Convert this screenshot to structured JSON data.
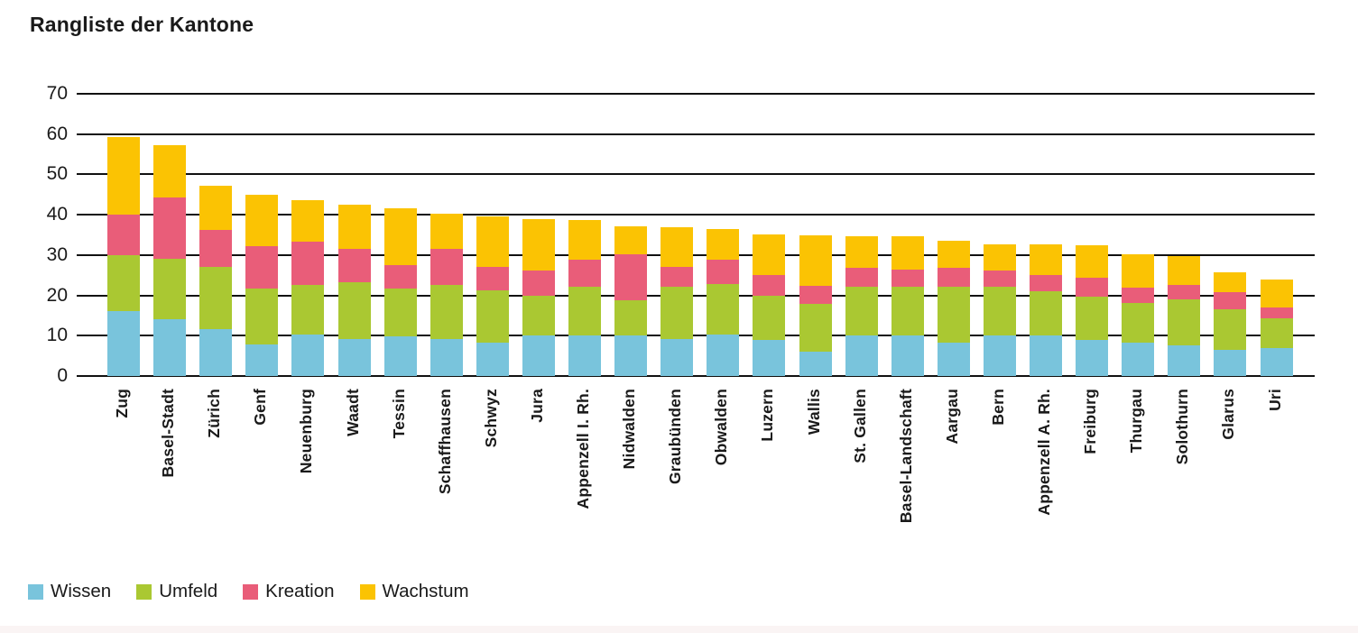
{
  "page": {
    "background": "#ffffff",
    "footer_strip_color": "#faf4f4",
    "grid_color": "#111111",
    "text_color": "#1a1a1a"
  },
  "chart_data": {
    "type": "bar",
    "stacked": true,
    "title": "Rangliste der Kantone",
    "xlabel": "",
    "ylabel": "",
    "y_axis": {
      "min": 0,
      "max": 70,
      "step": 10,
      "ticks": [
        70,
        60,
        50,
        40,
        30,
        20,
        10,
        0
      ]
    },
    "grid": "horizontal",
    "legend_position": "bottom-left",
    "categories": [
      "Zug",
      "Basel-Stadt",
      "Zürich",
      "Genf",
      "Neuenburg",
      "Waadt",
      "Tessin",
      "Schaffhausen",
      "Schwyz",
      "Jura",
      "Appenzell I. Rh.",
      "Nidwalden",
      "Graubünden",
      "Obwalden",
      "Luzern",
      "Wallis",
      "St. Gallen",
      "Basel-Landschaft",
      "Aargau",
      "Bern",
      "Appenzell A. Rh.",
      "Freiburg",
      "Thurgau",
      "Solothurn",
      "Glarus",
      "Uri"
    ],
    "series": [
      {
        "name": "Wissen",
        "color": "#79C4DC",
        "values": [
          16.0,
          14.0,
          11.7,
          7.9,
          10.2,
          9.2,
          9.9,
          9.2,
          8.2,
          10.0,
          10.0,
          10.0,
          9.1,
          10.2,
          9.0,
          6.0,
          10.0,
          10.0,
          8.3,
          10.0,
          10.0,
          9.0,
          8.2,
          7.6,
          6.4,
          6.9
        ]
      },
      {
        "name": "Umfeld",
        "color": "#AAC832",
        "values": [
          14.0,
          15.1,
          15.3,
          13.9,
          12.4,
          14.0,
          11.8,
          13.4,
          13.1,
          10.0,
          12.1,
          8.9,
          13.1,
          12.6,
          11.0,
          11.8,
          12.2,
          12.1,
          13.8,
          12.2,
          11.0,
          10.7,
          10.0,
          11.4,
          10.2,
          7.5
        ]
      },
      {
        "name": "Kreation",
        "color": "#E95D79",
        "values": [
          10.0,
          15.2,
          9.2,
          10.4,
          10.7,
          8.3,
          5.8,
          8.9,
          5.7,
          6.1,
          6.7,
          11.2,
          4.8,
          6.0,
          5.1,
          4.6,
          4.7,
          4.3,
          4.7,
          3.9,
          4.1,
          4.7,
          3.8,
          3.6,
          4.3,
          2.6
        ]
      },
      {
        "name": "Wachstum",
        "color": "#FBC303",
        "values": [
          19.3,
          12.9,
          10.9,
          12.8,
          10.3,
          11.1,
          14.1,
          8.7,
          12.5,
          12.9,
          10.0,
          7.1,
          9.9,
          7.7,
          10.1,
          12.6,
          7.7,
          8.2,
          6.8,
          6.5,
          7.5,
          8.0,
          8.2,
          7.1,
          4.8,
          6.9
        ]
      }
    ],
    "totals": [
      59.3,
      57.2,
      47.1,
      45.0,
      43.6,
      42.6,
      41.6,
      40.2,
      39.5,
      39.0,
      38.8,
      37.2,
      36.9,
      36.5,
      35.2,
      35.0,
      34.6,
      34.6,
      33.6,
      32.6,
      32.6,
      32.4,
      30.2,
      29.7,
      25.7,
      23.9
    ]
  }
}
